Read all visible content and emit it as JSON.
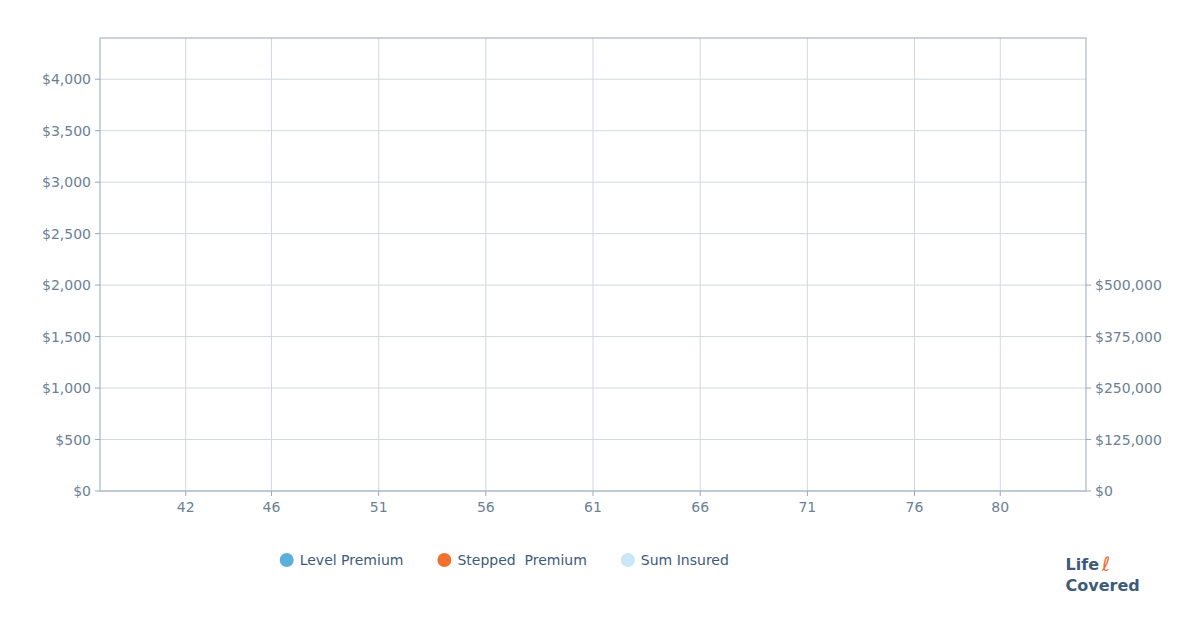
{
  "chart_data": {
    "type": "line",
    "x": [],
    "series": [
      {
        "name": "Level Premium",
        "color": "#5aafdc",
        "values": []
      },
      {
        "name": "Stepped  Premium",
        "color": "#f07030",
        "values": []
      },
      {
        "name": "Sum Insured",
        "color": "#c8e6f5",
        "values": []
      }
    ],
    "xlim": [
      38,
      84
    ],
    "xticks": [
      42,
      46,
      51,
      56,
      61,
      66,
      71,
      76,
      80
    ],
    "ylim": [
      0,
      4400
    ],
    "yticks": [
      {
        "value": 0,
        "label": "$0"
      },
      {
        "value": 500,
        "label": "$500"
      },
      {
        "value": 1000,
        "label": "$1,000"
      },
      {
        "value": 1500,
        "label": "$1,500"
      },
      {
        "value": 2000,
        "label": "$2,000"
      },
      {
        "value": 2500,
        "label": "$2,500"
      },
      {
        "value": 3000,
        "label": "$3,000"
      },
      {
        "value": 3500,
        "label": "$3,500"
      },
      {
        "value": 4000,
        "label": "$4,000"
      }
    ],
    "y2lim": [
      0,
      1100000
    ],
    "y2ticks": [
      {
        "value": 0,
        "label": "$0"
      },
      {
        "value": 125000,
        "label": "$125,000"
      },
      {
        "value": 250000,
        "label": "$250,000"
      },
      {
        "value": 375000,
        "label": "$375,000"
      },
      {
        "value": 500000,
        "label": "$500,000"
      }
    ],
    "grid": true,
    "legend": "bottom",
    "annotations": [
      {
        "text": "Life",
        "color": "#3d5a7a"
      },
      {
        "text": "ℓ",
        "color": "#f07030"
      },
      {
        "text": "Covered",
        "color": "#3d5a7a"
      }
    ]
  }
}
